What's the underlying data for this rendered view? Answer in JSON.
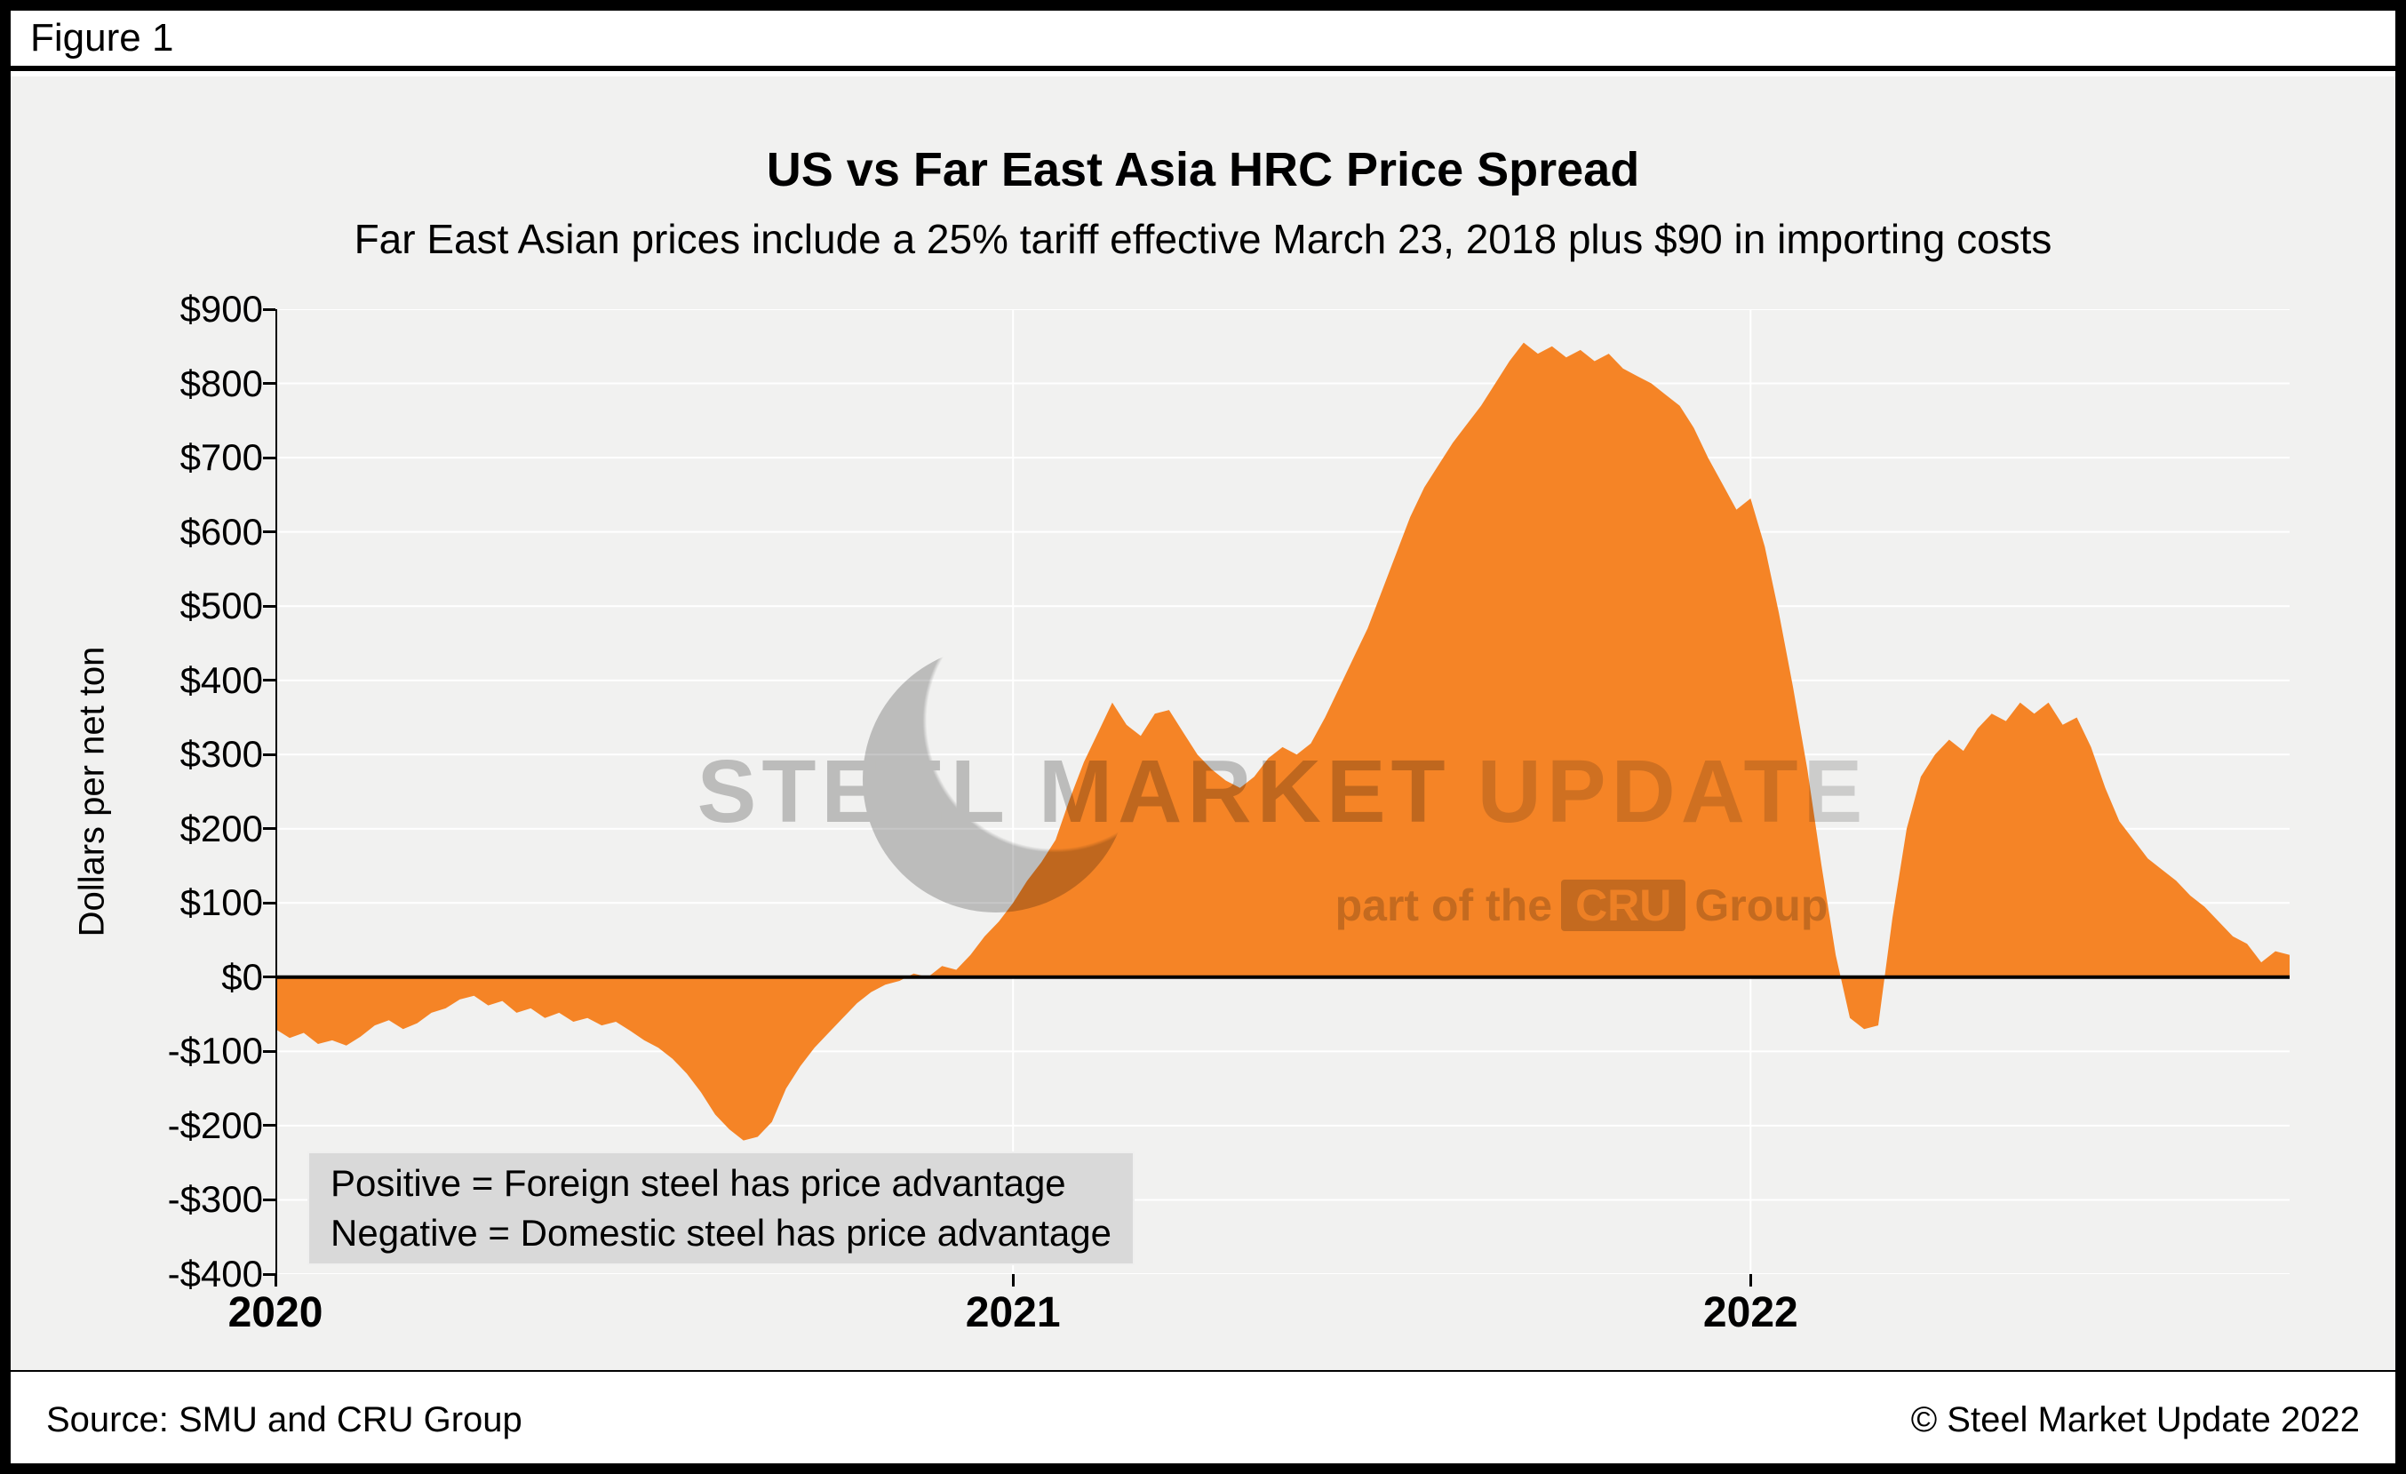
{
  "figure_label": "Figure 1",
  "chart_data": {
    "type": "area",
    "title": "US vs Far East Asia HRC Price Spread",
    "subtitle": "Far East Asian prices include a 25% tariff effective March 23, 2018 plus $90 in importing costs",
    "ylabel": "Dollars per net ton",
    "ylim": [
      -400,
      900
    ],
    "y_tick_interval": 100,
    "y_tick_labels": [
      "$900",
      "$800",
      "$700",
      "$600",
      "$500",
      "$400",
      "$300",
      "$200",
      "$100",
      "$0",
      "-$100",
      "-$200",
      "-$300",
      "-$400"
    ],
    "x_tick_labels": [
      "2020",
      "2021",
      "2022"
    ],
    "x_tick_offsets": [
      0,
      1,
      2
    ],
    "x_start_year": 2020,
    "x_step_years": 0.019231,
    "x_unit": "weekly",
    "grid": "horizontal white gridlines every $100, vertical white gridlines at year boundaries, black zero line",
    "legend": "none",
    "values": [
      -70,
      -82,
      -75,
      -90,
      -85,
      -92,
      -80,
      -65,
      -58,
      -70,
      -62,
      -48,
      -42,
      -30,
      -25,
      -38,
      -32,
      -48,
      -42,
      -55,
      -48,
      -60,
      -55,
      -65,
      -60,
      -72,
      -85,
      -95,
      -110,
      -130,
      -155,
      -185,
      -205,
      -220,
      -215,
      -195,
      -150,
      -120,
      -95,
      -75,
      -55,
      -35,
      -20,
      -10,
      -5,
      5,
      0,
      15,
      10,
      30,
      55,
      75,
      100,
      130,
      155,
      185,
      240,
      290,
      330,
      370,
      340,
      325,
      355,
      360,
      330,
      300,
      280,
      265,
      255,
      270,
      295,
      310,
      300,
      315,
      350,
      390,
      430,
      470,
      520,
      570,
      620,
      660,
      690,
      720,
      745,
      770,
      800,
      830,
      855,
      840,
      850,
      835,
      845,
      830,
      840,
      820,
      810,
      800,
      785,
      770,
      740,
      700,
      665,
      630,
      645,
      580,
      490,
      390,
      280,
      150,
      30,
      -55,
      -70,
      -65,
      80,
      200,
      270,
      300,
      320,
      305,
      335,
      355,
      345,
      370,
      355,
      370,
      340,
      350,
      310,
      255,
      210,
      185,
      160,
      145,
      130,
      110,
      95,
      75,
      55,
      45,
      20,
      35,
      30
    ]
  },
  "annotation": {
    "line1": "Positive = Foreign steel has price advantage",
    "line2": "Negative = Domestic steel has price advantage"
  },
  "watermark": {
    "line1_strong": "STEEL MARKET",
    "line1_light": "UPDATE",
    "part_prefix": "part of the",
    "cru": "CRU",
    "part_suffix": "Group"
  },
  "footer": {
    "source": "Source: SMU and CRU Group",
    "copyright": "© Steel Market Update 2022"
  },
  "colors": {
    "area": "#F58426",
    "plot_bg": "#F1F1F0",
    "grid": "#FFFFFF",
    "zero_line": "#000000",
    "annotation_bg": "#D9D9D9"
  }
}
